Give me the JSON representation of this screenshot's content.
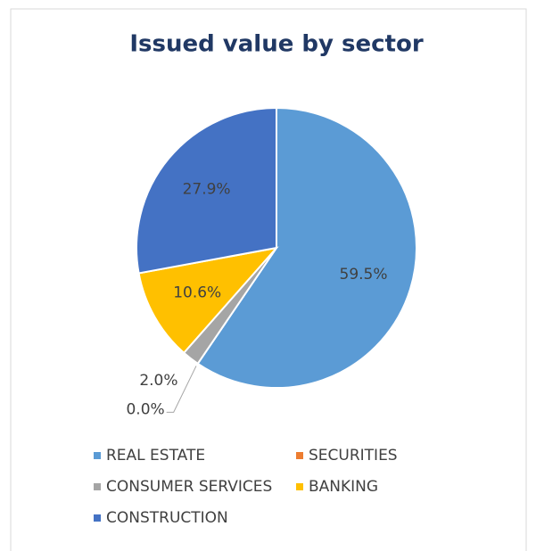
{
  "chart_data": {
    "type": "pie",
    "title": "Issued value by sector",
    "categories": [
      "REAL ESTATE",
      "SECURITIES",
      "CONSUMER SERVICES",
      "BANKING",
      "CONSTRUCTION"
    ],
    "values": [
      59.5,
      0.0,
      2.0,
      10.6,
      27.9
    ],
    "value_labels": [
      "59.5%",
      "0.0%",
      "2.0%",
      "10.6%",
      "27.9%"
    ],
    "colors": [
      "#5b9bd5",
      "#ed7d31",
      "#a5a5a5",
      "#ffc000",
      "#4472c4"
    ],
    "legend": "bottom"
  }
}
